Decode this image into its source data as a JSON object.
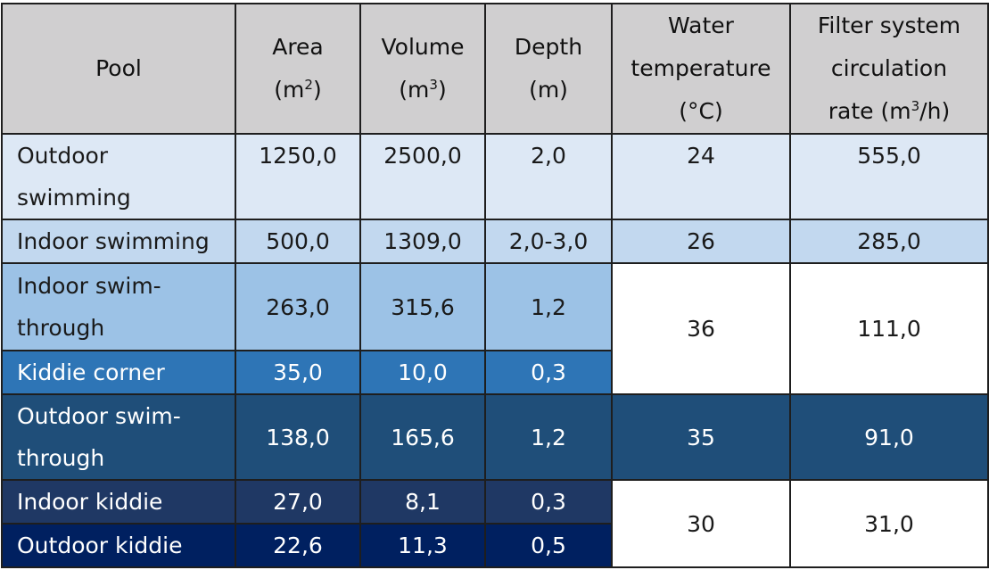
{
  "header": {
    "pool": "Pool",
    "area": {
      "label": "Area",
      "unit_pre": "(m",
      "unit_sup": "2",
      "unit_post": ")"
    },
    "volume": {
      "label": "Volume",
      "unit_pre": "(m",
      "unit_sup": "3",
      "unit_post": ")"
    },
    "depth": {
      "label": "Depth",
      "unit": "(m)"
    },
    "water_temp": {
      "line1": "Water",
      "line2": "temperature",
      "line3": "(°C)"
    },
    "filter": {
      "line1": "Filter system",
      "line2": "circulation",
      "line3_pre": "rate (m",
      "line3_sup": "3",
      "line3_post": "/h)"
    }
  },
  "rows": [
    {
      "pool": "Outdoor swimming",
      "area": "1250,0",
      "volume": "2500,0",
      "depth": "2,0",
      "temp": "24",
      "rate": "555,0"
    },
    {
      "pool": "Indoor swimming",
      "area": "500,0",
      "volume": "1309,0",
      "depth": "2,0-3,0",
      "temp": "26",
      "rate": "285,0"
    },
    {
      "pool": "Indoor swim-through",
      "area": "263,0",
      "volume": "315,6",
      "depth": "1,2",
      "temp": "36",
      "rate": "111,0"
    },
    {
      "pool": "Kiddie corner",
      "area": "35,0",
      "volume": "10,0",
      "depth": "0,3"
    },
    {
      "pool": "Outdoor swim-through",
      "area": "138,0",
      "volume": "165,6",
      "depth": "1,2",
      "temp": "35",
      "rate": "91,0"
    },
    {
      "pool": "Indoor kiddie",
      "area": "27,0",
      "volume": "8,1",
      "depth": "0,3",
      "temp": "30",
      "rate": "31,0"
    },
    {
      "pool": "Outdoor kiddie",
      "area": "22,6",
      "volume": "11,3",
      "depth": "0,5"
    }
  ],
  "colors": {
    "header_bg": "#d0cfd0",
    "row1_bg": "#dde8f5",
    "row2_bg": "#c2d8ef",
    "row3_bg": "#9cc2e6",
    "row4_bg": "#2e75b6",
    "row5_bg": "#1f4e79",
    "row6_bg": "#1f3864",
    "row7_bg": "#002060",
    "border": "#1e1e1e"
  }
}
